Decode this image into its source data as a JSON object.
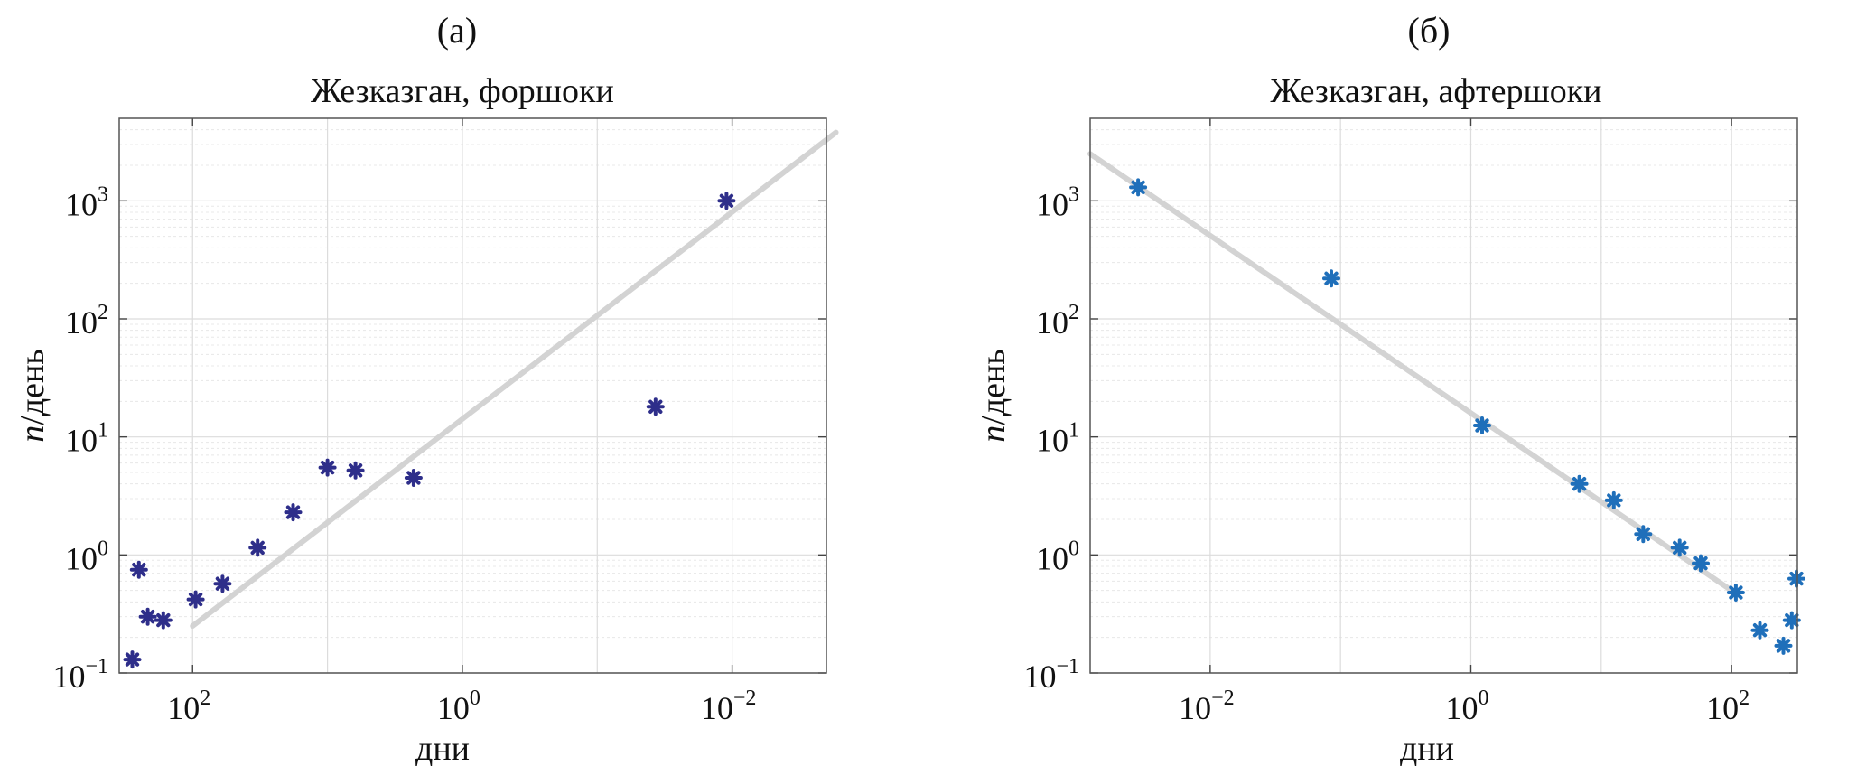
{
  "chart_data": [
    {
      "type": "scatter",
      "panel_label": "(а)",
      "title": "Жезказган, форшоки",
      "xlabel": "дни",
      "ylabel": "n/день",
      "x_scale": "log",
      "y_scale": "log",
      "x_reversed": true,
      "xlim": [
        350,
        0.002
      ],
      "ylim": [
        0.1,
        5000
      ],
      "grid": true,
      "x_ticks": [
        {
          "base": "10",
          "exp": "2",
          "value": 100
        },
        {
          "base": "10",
          "exp": "0",
          "value": 1
        },
        {
          "base": "10",
          "exp": "−2",
          "value": 0.01
        }
      ],
      "y_ticks": [
        {
          "base": "10",
          "exp": "−1",
          "value": 0.1
        },
        {
          "base": "10",
          "exp": "0",
          "value": 1
        },
        {
          "base": "10",
          "exp": "1",
          "value": 10
        },
        {
          "base": "10",
          "exp": "2",
          "value": 100
        },
        {
          "base": "10",
          "exp": "3",
          "value": 1000
        }
      ],
      "marker_color": "#2e2e8a",
      "fit_color": "#d3d3d3",
      "points": [
        {
          "x": 280,
          "y": 0.13
        },
        {
          "x": 250,
          "y": 0.75
        },
        {
          "x": 215,
          "y": 0.3
        },
        {
          "x": 165,
          "y": 0.28
        },
        {
          "x": 95,
          "y": 0.42
        },
        {
          "x": 60,
          "y": 0.57
        },
        {
          "x": 33,
          "y": 1.15
        },
        {
          "x": 18,
          "y": 2.3
        },
        {
          "x": 10,
          "y": 5.5
        },
        {
          "x": 6.2,
          "y": 5.2
        },
        {
          "x": 2.3,
          "y": 4.5
        },
        {
          "x": 0.037,
          "y": 18
        },
        {
          "x": 0.011,
          "y": 1000
        }
      ],
      "fit_line": {
        "x": [
          100,
          0.0017
        ],
        "y": [
          0.25,
          3800
        ]
      }
    },
    {
      "type": "scatter",
      "panel_label": "(б)",
      "title": "Жезказган, афтершоки",
      "xlabel": "дни",
      "ylabel": "n/день",
      "x_scale": "log",
      "y_scale": "log",
      "xlim": [
        0.0012,
        320
      ],
      "ylim": [
        0.1,
        5000
      ],
      "grid": true,
      "x_ticks": [
        {
          "base": "10",
          "exp": "−2",
          "value": 0.01
        },
        {
          "base": "10",
          "exp": "0",
          "value": 1
        },
        {
          "base": "10",
          "exp": "2",
          "value": 100
        }
      ],
      "y_ticks": [
        {
          "base": "10",
          "exp": "−1",
          "value": 0.1
        },
        {
          "base": "10",
          "exp": "0",
          "value": 1
        },
        {
          "base": "10",
          "exp": "1",
          "value": 10
        },
        {
          "base": "10",
          "exp": "2",
          "value": 100
        },
        {
          "base": "10",
          "exp": "3",
          "value": 1000
        }
      ],
      "marker_color": "#1f6fba",
      "fit_color": "#d3d3d3",
      "points": [
        {
          "x": 0.0028,
          "y": 1300
        },
        {
          "x": 0.085,
          "y": 220
        },
        {
          "x": 1.22,
          "y": 12.5
        },
        {
          "x": 6.8,
          "y": 4.0
        },
        {
          "x": 12.5,
          "y": 2.9
        },
        {
          "x": 21,
          "y": 1.5
        },
        {
          "x": 40,
          "y": 1.15
        },
        {
          "x": 58,
          "y": 0.85
        },
        {
          "x": 108,
          "y": 0.48
        },
        {
          "x": 165,
          "y": 0.23
        },
        {
          "x": 250,
          "y": 0.17
        },
        {
          "x": 290,
          "y": 0.28
        },
        {
          "x": 315,
          "y": 0.63
        }
      ],
      "fit_line": {
        "x": [
          0.0012,
          100
        ],
        "y": [
          2500,
          0.5
        ]
      }
    }
  ]
}
